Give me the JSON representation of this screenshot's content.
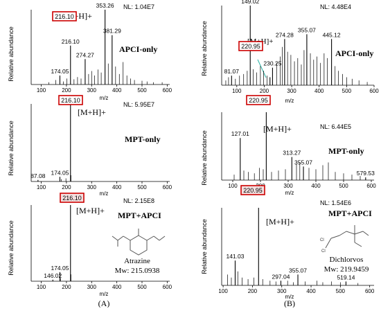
{
  "colors": {
    "highlight_box": "#cc0000",
    "highlight_fill": "#f3dede",
    "leader_line": "#2bb3a5",
    "peak": "#000000"
  },
  "chart_data": [
    {
      "type": "bar",
      "panel": "A-top",
      "label": "APCI-only",
      "nl": "NL: 1.04E7",
      "adduct": "[M+H]+",
      "highlight": "216.10",
      "highlight_fill": false,
      "xlim": [
        60,
        610
      ],
      "xticks": [
        100,
        200,
        300,
        400,
        500,
        600
      ],
      "xlabel": "m/z",
      "ylabel": "Relative abundance",
      "ylim": [
        0,
        100
      ],
      "labeled_peaks": [
        {
          "x": 174.05,
          "y": 12,
          "label": "174.05"
        },
        {
          "x": 216.1,
          "y": 52,
          "label": "216.10"
        },
        {
          "x": 274.27,
          "y": 34,
          "label": "274.27"
        },
        {
          "x": 353.26,
          "y": 100,
          "label": "353.26"
        },
        {
          "x": 381.29,
          "y": 66,
          "label": "381.29"
        }
      ],
      "minor_peaks": [
        {
          "x": 130,
          "y": 3
        },
        {
          "x": 158,
          "y": 6
        },
        {
          "x": 188,
          "y": 4
        },
        {
          "x": 202,
          "y": 8
        },
        {
          "x": 230,
          "y": 7
        },
        {
          "x": 244,
          "y": 10
        },
        {
          "x": 258,
          "y": 8
        },
        {
          "x": 288,
          "y": 14
        },
        {
          "x": 300,
          "y": 18
        },
        {
          "x": 312,
          "y": 12
        },
        {
          "x": 325,
          "y": 20
        },
        {
          "x": 338,
          "y": 16
        },
        {
          "x": 366,
          "y": 28
        },
        {
          "x": 395,
          "y": 24
        },
        {
          "x": 410,
          "y": 14
        },
        {
          "x": 425,
          "y": 30
        },
        {
          "x": 440,
          "y": 12
        },
        {
          "x": 455,
          "y": 8
        },
        {
          "x": 470,
          "y": 6
        },
        {
          "x": 500,
          "y": 5
        },
        {
          "x": 520,
          "y": 4
        },
        {
          "x": 545,
          "y": 3
        },
        {
          "x": 580,
          "y": 3
        }
      ]
    },
    {
      "type": "bar",
      "panel": "A-mid",
      "label": "MPT-only",
      "nl": "NL: 5.95E7",
      "adduct": "[M+H]+",
      "highlight": "216.10",
      "highlight_fill": false,
      "xlim": [
        60,
        610
      ],
      "xticks": [
        100,
        200,
        300,
        400,
        500,
        600
      ],
      "xlabel": "m/z",
      "ylabel": "Relative abundance",
      "ylim": [
        0,
        100
      ],
      "labeled_peaks": [
        {
          "x": 87.08,
          "y": 2,
          "label": "87.08"
        },
        {
          "x": 174.05,
          "y": 6,
          "label": "174.05"
        },
        {
          "x": 216.1,
          "y": 100,
          "label": ""
        }
      ],
      "minor_peaks": [
        {
          "x": 180,
          "y": 3
        },
        {
          "x": 198,
          "y": 4
        },
        {
          "x": 218,
          "y": 8
        }
      ]
    },
    {
      "type": "bar",
      "panel": "A-bot",
      "label": "MPT+APCI",
      "nl": "NL: 2.15E8",
      "adduct": "[M+H]+",
      "highlight": "216.10",
      "highlight_fill": true,
      "compound": "Atrazine",
      "mw": "Mw: 215.0938",
      "xlim": [
        60,
        610
      ],
      "xticks": [
        100,
        200,
        300,
        400,
        500,
        600
      ],
      "xlabel": "m/z",
      "ylabel": "Relative abundance",
      "ylim": [
        0,
        100
      ],
      "labeled_peaks": [
        {
          "x": 146.02,
          "y": 2,
          "label": "146.02"
        },
        {
          "x": 174.05,
          "y": 12,
          "label": "174.05"
        },
        {
          "x": 216.1,
          "y": 100,
          "label": ""
        }
      ],
      "minor_peaks": [
        {
          "x": 176,
          "y": 4
        },
        {
          "x": 218,
          "y": 9
        }
      ]
    },
    {
      "type": "bar",
      "panel": "B-top",
      "label": "APCI-only",
      "nl": "NL: 4.48E4",
      "adduct": "[M+H]+",
      "highlight": "220.95",
      "highlight_fill": false,
      "xlim": [
        45,
        600
      ],
      "xticks": [
        100,
        200,
        300,
        400,
        500,
        600
      ],
      "xlabel": "m/z",
      "ylabel": "Relative abundance",
      "ylim": [
        0,
        100
      ],
      "labeled_peaks": [
        {
          "x": 81.07,
          "y": 12,
          "label": "81.07"
        },
        {
          "x": 149.02,
          "y": 100,
          "label": "149.02"
        },
        {
          "x": 220.95,
          "y": 10,
          "label": ""
        },
        {
          "x": 230.25,
          "y": 22,
          "label": "230.25"
        },
        {
          "x": 274.28,
          "y": 58,
          "label": "274.28"
        },
        {
          "x": 355.07,
          "y": 64,
          "label": "355.07"
        },
        {
          "x": 445.12,
          "y": 58,
          "label": "445.12"
        }
      ],
      "minor_peaks": [
        {
          "x": 60,
          "y": 6
        },
        {
          "x": 70,
          "y": 10
        },
        {
          "x": 95,
          "y": 8
        },
        {
          "x": 110,
          "y": 12
        },
        {
          "x": 125,
          "y": 14
        },
        {
          "x": 138,
          "y": 18
        },
        {
          "x": 160,
          "y": 20
        },
        {
          "x": 172,
          "y": 16
        },
        {
          "x": 186,
          "y": 24
        },
        {
          "x": 198,
          "y": 18
        },
        {
          "x": 210,
          "y": 12
        },
        {
          "x": 245,
          "y": 28
        },
        {
          "x": 258,
          "y": 36
        },
        {
          "x": 266,
          "y": 48
        },
        {
          "x": 285,
          "y": 42
        },
        {
          "x": 297,
          "y": 38
        },
        {
          "x": 310,
          "y": 30
        },
        {
          "x": 322,
          "y": 34
        },
        {
          "x": 335,
          "y": 26
        },
        {
          "x": 345,
          "y": 44
        },
        {
          "x": 368,
          "y": 40
        },
        {
          "x": 380,
          "y": 32
        },
        {
          "x": 392,
          "y": 36
        },
        {
          "x": 405,
          "y": 28
        },
        {
          "x": 418,
          "y": 40
        },
        {
          "x": 430,
          "y": 34
        },
        {
          "x": 458,
          "y": 24
        },
        {
          "x": 470,
          "y": 18
        },
        {
          "x": 485,
          "y": 14
        },
        {
          "x": 500,
          "y": 10
        },
        {
          "x": 520,
          "y": 8
        },
        {
          "x": 545,
          "y": 6
        },
        {
          "x": 575,
          "y": 4
        }
      ]
    },
    {
      "type": "bar",
      "panel": "B-mid",
      "label": "MPT-only",
      "nl": "NL: 6.44E5",
      "adduct": "[M+H]+",
      "highlight": "220.95",
      "highlight_fill": false,
      "xlim": [
        60,
        610
      ],
      "xticks": [
        100,
        200,
        300,
        400,
        500,
        600
      ],
      "xlabel": "m/z",
      "ylabel": "Relative abundance",
      "ylim": [
        0,
        100
      ],
      "labeled_peaks": [
        {
          "x": 127.01,
          "y": 62,
          "label": "127.01"
        },
        {
          "x": 220.95,
          "y": 100,
          "label": ""
        },
        {
          "x": 313.27,
          "y": 34,
          "label": "313.27"
        },
        {
          "x": 355.07,
          "y": 20,
          "label": "355.07"
        },
        {
          "x": 579.53,
          "y": 4,
          "label": "579.53"
        }
      ],
      "minor_peaks": [
        {
          "x": 105,
          "y": 8
        },
        {
          "x": 140,
          "y": 14
        },
        {
          "x": 156,
          "y": 12
        },
        {
          "x": 178,
          "y": 10
        },
        {
          "x": 196,
          "y": 18
        },
        {
          "x": 210,
          "y": 16
        },
        {
          "x": 240,
          "y": 12
        },
        {
          "x": 265,
          "y": 14
        },
        {
          "x": 290,
          "y": 16
        },
        {
          "x": 330,
          "y": 24
        },
        {
          "x": 342,
          "y": 26
        },
        {
          "x": 375,
          "y": 18
        },
        {
          "x": 400,
          "y": 16
        },
        {
          "x": 425,
          "y": 22
        },
        {
          "x": 445,
          "y": 26
        },
        {
          "x": 470,
          "y": 12
        },
        {
          "x": 500,
          "y": 10
        },
        {
          "x": 530,
          "y": 8
        },
        {
          "x": 560,
          "y": 6
        }
      ]
    },
    {
      "type": "bar",
      "panel": "B-bot",
      "label": "MPT+APCI",
      "nl": "NL: 1.54E6",
      "adduct": "[M+H]+",
      "highlight": "220.95",
      "highlight_fill": true,
      "compound": "Dichlorvos",
      "mw": "Mw: 219.9459",
      "xlim": [
        95,
        615
      ],
      "xticks": [
        100,
        200,
        300,
        400,
        500,
        600
      ],
      "xlabel": "m/z",
      "ylabel": "Relative abundance",
      "ylim": [
        0,
        100
      ],
      "labeled_peaks": [
        {
          "x": 141.03,
          "y": 32,
          "label": "141.03"
        },
        {
          "x": 220.95,
          "y": 100,
          "label": ""
        },
        {
          "x": 297.04,
          "y": 6,
          "label": "297.04"
        },
        {
          "x": 355.07,
          "y": 14,
          "label": "355.07"
        },
        {
          "x": 519.14,
          "y": 5,
          "label": "519.14"
        }
      ],
      "minor_peaks": [
        {
          "x": 115,
          "y": 14
        },
        {
          "x": 128,
          "y": 10
        },
        {
          "x": 150,
          "y": 18
        },
        {
          "x": 165,
          "y": 10
        },
        {
          "x": 185,
          "y": 8
        },
        {
          "x": 205,
          "y": 10
        },
        {
          "x": 235,
          "y": 8
        },
        {
          "x": 260,
          "y": 6
        },
        {
          "x": 280,
          "y": 5
        },
        {
          "x": 320,
          "y": 6
        },
        {
          "x": 340,
          "y": 4
        },
        {
          "x": 380,
          "y": 5
        },
        {
          "x": 420,
          "y": 6
        },
        {
          "x": 440,
          "y": 4
        },
        {
          "x": 470,
          "y": 5
        },
        {
          "x": 500,
          "y": 4
        },
        {
          "x": 560,
          "y": 3
        }
      ]
    }
  ],
  "captions": [
    "(A)",
    "(B)"
  ]
}
